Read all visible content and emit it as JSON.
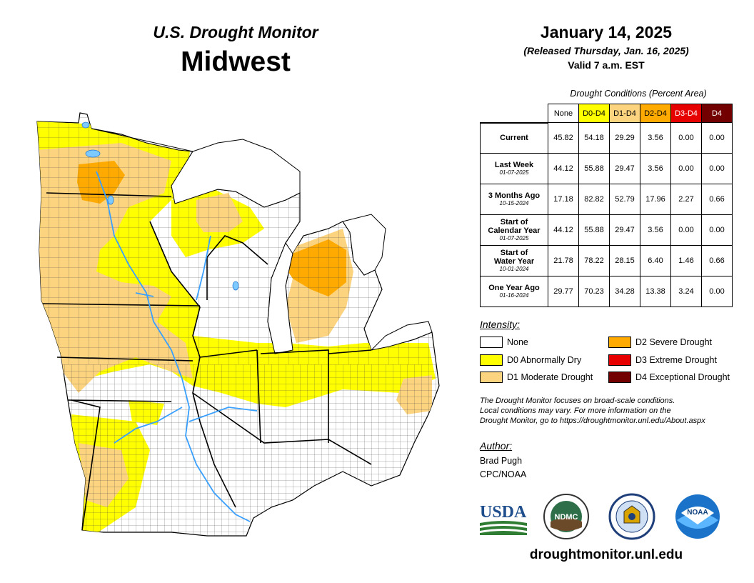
{
  "header": {
    "product_title": "U.S. Drought Monitor",
    "region": "Midwest",
    "map_date": "January 14, 2025",
    "release": "(Released Thursday, Jan. 16, 2025)",
    "valid": "Valid 7 a.m. EST"
  },
  "table": {
    "caption": "Drought Conditions (Percent Area)",
    "columns": [
      {
        "label": "None",
        "color": "#ffffff",
        "text_color": "#000000"
      },
      {
        "label": "D0-D4",
        "color": "#ffff00",
        "text_color": "#000000"
      },
      {
        "label": "D1-D4",
        "color": "#fcd37f",
        "text_color": "#000000"
      },
      {
        "label": "D2-D4",
        "color": "#ffaa00",
        "text_color": "#000000"
      },
      {
        "label": "D3-D4",
        "color": "#e60000",
        "text_color": "#ffffff"
      },
      {
        "label": "D4",
        "color": "#730000",
        "text_color": "#ffffff"
      }
    ],
    "rows": [
      {
        "label": "Current",
        "label2": "",
        "date": "",
        "values": [
          "45.82",
          "54.18",
          "29.29",
          "3.56",
          "0.00",
          "0.00"
        ]
      },
      {
        "label": "Last Week",
        "label2": "",
        "date": "01-07-2025",
        "values": [
          "44.12",
          "55.88",
          "29.47",
          "3.56",
          "0.00",
          "0.00"
        ]
      },
      {
        "label": "3 Months Ago",
        "label2": "",
        "date": "10-15-2024",
        "values": [
          "17.18",
          "82.82",
          "52.79",
          "17.96",
          "2.27",
          "0.66"
        ]
      },
      {
        "label": "Start of",
        "label2": "Calendar Year",
        "date": "01-07-2025",
        "values": [
          "44.12",
          "55.88",
          "29.47",
          "3.56",
          "0.00",
          "0.00"
        ]
      },
      {
        "label": "Start of",
        "label2": "Water Year",
        "date": "10-01-2024",
        "values": [
          "21.78",
          "78.22",
          "28.15",
          "6.40",
          "1.46",
          "0.66"
        ]
      },
      {
        "label": "One Year Ago",
        "label2": "",
        "date": "01-16-2024",
        "values": [
          "29.77",
          "70.23",
          "34.28",
          "13.38",
          "3.24",
          "0.00"
        ]
      }
    ]
  },
  "legend": {
    "title": "Intensity:",
    "items": [
      {
        "label": "None",
        "color": "#ffffff"
      },
      {
        "label": "D0 Abnormally Dry",
        "color": "#ffff00"
      },
      {
        "label": "D1 Moderate Drought",
        "color": "#fcd37f"
      },
      {
        "label": "D2 Severe Drought",
        "color": "#ffaa00"
      },
      {
        "label": "D3 Extreme Drought",
        "color": "#e60000"
      },
      {
        "label": "D4 Exceptional Drought",
        "color": "#730000"
      }
    ]
  },
  "note": {
    "line1": "The Drought Monitor focuses on broad-scale conditions.",
    "line2": "Local conditions may vary. For more information on the",
    "line3": "Drought Monitor, go to https://droughtmonitor.unl.edu/About.aspx"
  },
  "author": {
    "title": "Author:",
    "name": "Brad Pugh",
    "org": "CPC/NOAA"
  },
  "logos": {
    "usda": "USDA",
    "ndmc": "NDMC",
    "noaa": "NOAA"
  },
  "website": "droughtmonitor.unl.edu"
}
